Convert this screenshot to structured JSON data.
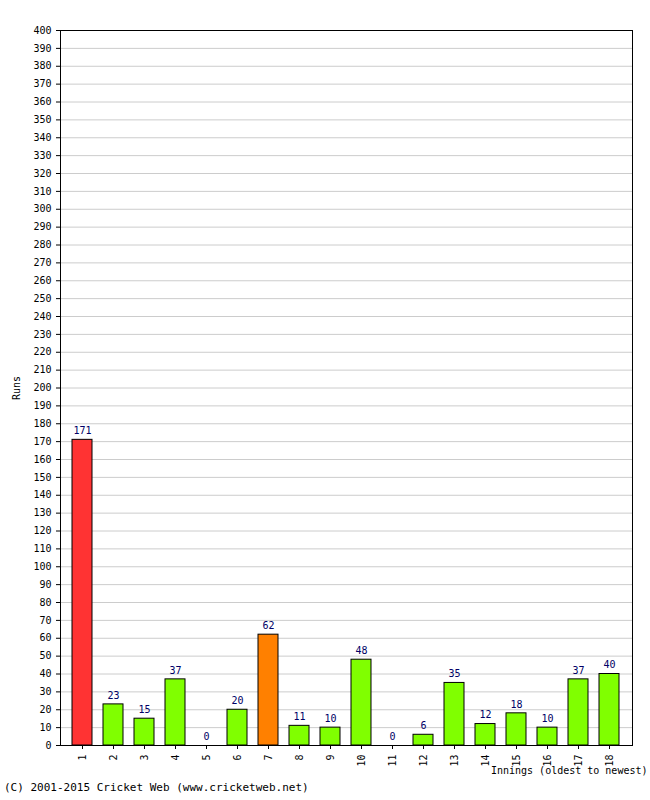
{
  "chart_data": {
    "type": "bar",
    "x_label": "Innings (oldest to newest)",
    "y_label": "Runs",
    "caption": "(C) 2001-2015 Cricket Web (www.cricketweb.net)",
    "categories": [
      "1",
      "2",
      "3",
      "4",
      "5",
      "6",
      "7",
      "8",
      "9",
      "10",
      "11",
      "12",
      "13",
      "14",
      "15",
      "16",
      "17",
      "18"
    ],
    "values": [
      171,
      23,
      15,
      37,
      0,
      20,
      62,
      11,
      10,
      48,
      0,
      6,
      35,
      12,
      18,
      10,
      37,
      40
    ],
    "colors": [
      "#ff3333",
      "#80ff00",
      "#80ff00",
      "#80ff00",
      "#80ff00",
      "#80ff00",
      "#ff8000",
      "#80ff00",
      "#80ff00",
      "#80ff00",
      "#80ff00",
      "#80ff00",
      "#80ff00",
      "#80ff00",
      "#80ff00",
      "#80ff00",
      "#80ff00",
      "#80ff00"
    ],
    "ylim": [
      0,
      400
    ],
    "yticks": [
      0,
      10,
      20,
      30,
      40,
      50,
      60,
      70,
      80,
      90,
      100,
      110,
      120,
      130,
      140,
      150,
      160,
      170,
      180,
      190,
      200,
      210,
      220,
      230,
      240,
      250,
      260,
      270,
      280,
      290,
      300,
      310,
      320,
      330,
      340,
      350,
      360,
      370,
      380,
      390,
      400
    ],
    "grid": true,
    "data_labels": true
  }
}
